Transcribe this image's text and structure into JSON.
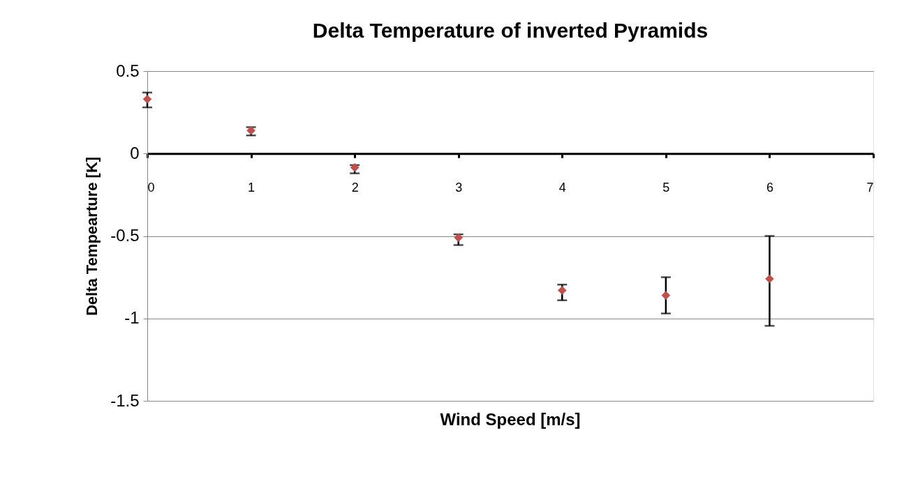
{
  "chart_data": {
    "type": "scatter",
    "title": "Delta Temperature of inverted Pyramids",
    "xlabel": "Wind Speed [m/s]",
    "ylabel": "Delta Tempearture [K]",
    "x": [
      0,
      1,
      2,
      3,
      4,
      5,
      6
    ],
    "values": [
      0.33,
      0.14,
      -0.085,
      -0.51,
      -0.83,
      -0.86,
      -0.76
    ],
    "errors": [
      [
        0.28,
        0.37
      ],
      [
        0.11,
        0.16
      ],
      [
        -0.12,
        -0.07
      ],
      [
        -0.555,
        -0.49
      ],
      [
        -0.89,
        -0.795
      ],
      [
        -0.97,
        -0.75
      ],
      [
        -1.045,
        -0.5
      ]
    ],
    "color": "#c0504d",
    "marker": "diamond",
    "xlim": [
      0,
      7
    ],
    "xticks": [
      0,
      1,
      2,
      3,
      4,
      5,
      6,
      7
    ],
    "ylim": [
      -1.5,
      0.5
    ],
    "yticks": [
      -1.5,
      -1,
      -0.5,
      0,
      0.5
    ],
    "grid": "y"
  }
}
